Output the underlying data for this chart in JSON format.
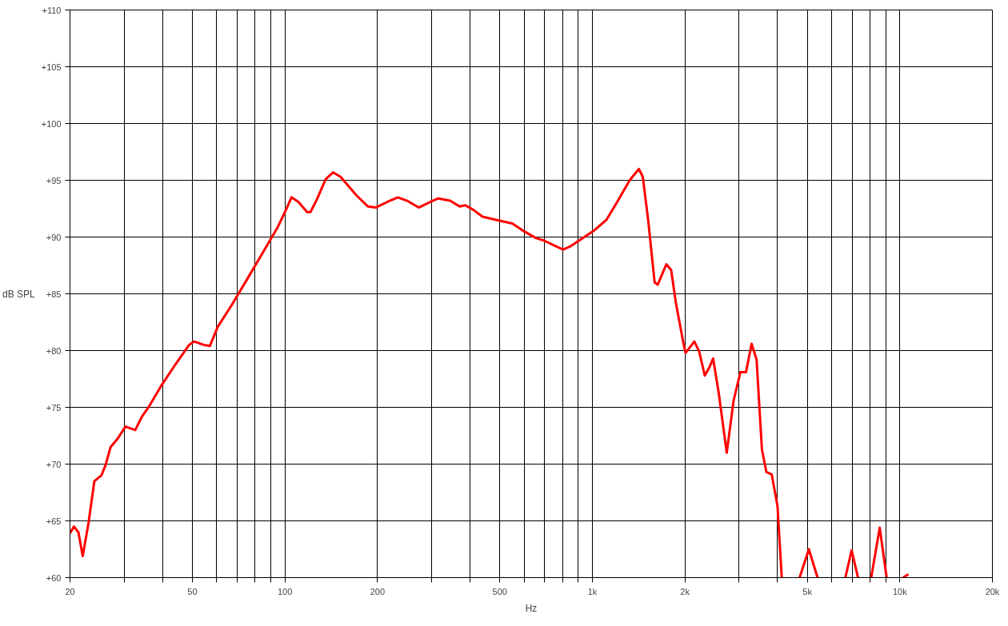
{
  "chart_data": {
    "type": "line",
    "xlabel": "Hz",
    "ylabel": "dB SPL",
    "log": "x",
    "grid": true,
    "xlim": [
      20,
      20000
    ],
    "ylim": [
      60,
      110
    ],
    "xticks": [
      20,
      {
        "value": 30,
        "label": null
      },
      {
        "value": 40,
        "label": null
      },
      50,
      {
        "value": 60,
        "label": null
      },
      {
        "value": 70,
        "label": null
      },
      {
        "value": 80,
        "label": null
      },
      {
        "value": 90,
        "label": null
      },
      100,
      200,
      {
        "value": 300,
        "label": null
      },
      {
        "value": 400,
        "label": null
      },
      500,
      {
        "value": 600,
        "label": null
      },
      {
        "value": 700,
        "label": null
      },
      {
        "value": 800,
        "label": null
      },
      {
        "value": 900,
        "label": null
      },
      {
        "value": 1000,
        "label": "1k"
      },
      {
        "value": 2000,
        "label": "2k"
      },
      {
        "value": 3000,
        "label": null
      },
      {
        "value": 4000,
        "label": null
      },
      {
        "value": 5000,
        "label": "5k"
      },
      {
        "value": 6000,
        "label": null
      },
      {
        "value": 7000,
        "label": null
      },
      {
        "value": 8000,
        "label": null
      },
      {
        "value": 9000,
        "label": null
      },
      {
        "value": 10000,
        "label": "10k"
      },
      {
        "value": 20000,
        "label": "20k"
      }
    ],
    "yticks": [
      {
        "value": 60,
        "label": "+60"
      },
      {
        "value": 65,
        "label": "+65"
      },
      {
        "value": 70,
        "label": "+70"
      },
      {
        "value": 75,
        "label": "+75"
      },
      {
        "value": 80,
        "label": "+80"
      },
      {
        "value": 85,
        "label": "+85"
      },
      {
        "value": 90,
        "label": "+90"
      },
      {
        "value": 95,
        "label": "+95"
      },
      {
        "value": 100,
        "label": "+100"
      },
      {
        "value": 105,
        "label": "+105"
      },
      {
        "value": 110,
        "label": "+110"
      }
    ],
    "series": [
      {
        "color": "#ff0000",
        "x": [
          20,
          20.6,
          21.3,
          22,
          23,
          24,
          25.3,
          26.1,
          27.1,
          28.5,
          30.3,
          32.6,
          34.3,
          36.2,
          39.4,
          44.1,
          48.8,
          50.6,
          54.5,
          57,
          60.5,
          67.1,
          75.8,
          84.2,
          94.9,
          101.6,
          105,
          110.6,
          118.1,
          121.1,
          127,
          135.7,
          143.4,
          151.8,
          170.5,
          186.1,
          197.3,
          215.6,
          232.9,
          249.7,
          272.4,
          297.5,
          315.4,
          344.5,
          370,
          386,
          410,
          439,
          489,
          549,
          600,
          656,
          695,
          760,
          803,
          851,
          929,
          1016,
          1110,
          1211,
          1322,
          1417,
          1459,
          1520,
          1594,
          1631,
          1740,
          1804,
          1869,
          1979,
          2010,
          2146,
          2226,
          2320,
          2400,
          2470,
          2575,
          2735,
          2880,
          3030,
          3160,
          3295,
          3420,
          3560,
          3680,
          3830,
          4000,
          4130,
          4400,
          4720,
          5060,
          5400,
          6000,
          6650,
          6970,
          7310,
          7700,
          8070,
          8600,
          9060,
          9600,
          10240,
          10660
        ],
        "values": [
          63.9,
          64.5,
          64.0,
          61.9,
          64.9,
          68.5,
          69.0,
          69.9,
          71.5,
          72.2,
          73.3,
          73.0,
          74.2,
          75.1,
          76.8,
          78.8,
          80.5,
          80.8,
          80.5,
          80.4,
          82.1,
          84.0,
          86.4,
          88.5,
          90.9,
          92.6,
          93.5,
          93.1,
          92.2,
          92.2,
          93.3,
          95.1,
          95.7,
          95.3,
          93.7,
          92.7,
          92.6,
          93.1,
          93.5,
          93.2,
          92.6,
          93.1,
          93.4,
          93.2,
          92.7,
          92.8,
          92.4,
          91.8,
          91.5,
          91.2,
          90.5,
          89.9,
          89.7,
          89.2,
          88.9,
          89.2,
          89.9,
          90.6,
          91.5,
          93.2,
          95.0,
          96.0,
          95.3,
          91.4,
          86.0,
          85.8,
          87.6,
          87.1,
          84.2,
          80.6,
          79.8,
          80.8,
          79.9,
          77.8,
          78.5,
          79.3,
          76.3,
          71.0,
          75.6,
          78.1,
          78.1,
          80.6,
          79.2,
          71.3,
          69.3,
          69.1,
          66.3,
          60.0,
          null,
          60.0,
          62.5,
          60.0,
          null,
          60.0,
          62.4,
          60.0,
          null,
          60.0,
          64.4,
          60.0,
          null,
          60.0,
          60.3
        ]
      }
    ]
  }
}
